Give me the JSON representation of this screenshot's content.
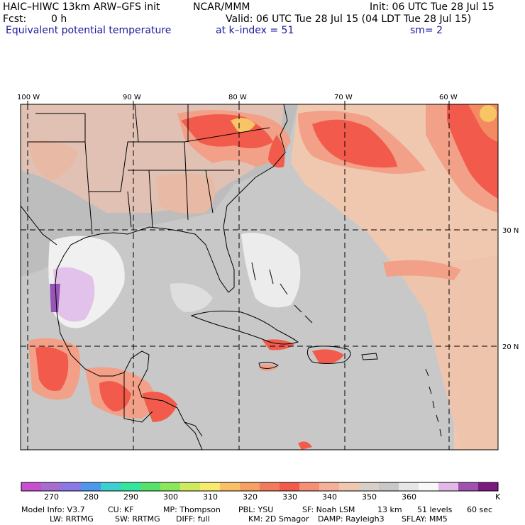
{
  "header": {
    "model_title": "HAIC–HIWC 13km ARW–GFS init",
    "org": "NCAR/MMM",
    "init": "Init: 06 UTC Tue 28 Jul 15",
    "fcst_label": "Fcst:",
    "fcst_value": "0 h",
    "valid": "Valid: 06 UTC Tue 28 Jul 15 (04 LDT Tue 28 Jul 15)",
    "field": "Equivalent potential temperature",
    "level": "at k–index =  51",
    "smooth": "sm= 2"
  },
  "map": {
    "lon_labels": [
      "100 W",
      "90 W",
      "80 W",
      "70 W",
      "60 W"
    ],
    "lat_labels": [
      "30 N",
      "20 N"
    ],
    "colors": {
      "background_gray": "#c8c8c8",
      "land_gray": "#b5b5b5",
      "light_salmon": "#f0c3ad",
      "salmon": "#f2a088",
      "red_orange": "#f25b4b",
      "orange": "#f38a62",
      "yellow_orange": "#f8c565",
      "light_gray": "#e0e0e0",
      "near_white": "#f2f2f2",
      "lavender": "#d8b0e0",
      "purple": "#9855b8",
      "coast_line": "#000000",
      "grid_line": "#000000"
    }
  },
  "colorbar": {
    "unit": "K",
    "tick_labels": [
      "270",
      "280",
      "290",
      "300",
      "310",
      "320",
      "330",
      "340",
      "350",
      "360"
    ],
    "colors": [
      "#c84fcf",
      "#a76ccf",
      "#8a78e8",
      "#4c98ee",
      "#3ad0d0",
      "#33e6a0",
      "#54e26a",
      "#8ae75a",
      "#d0ea60",
      "#f8ea6a",
      "#f9c065",
      "#f8a062",
      "#f37a5a",
      "#f25b4b",
      "#f58f76",
      "#f6b098",
      "#f0c8b0",
      "#d8d0c8",
      "#c8c8c8",
      "#e6e6e6",
      "#f8f8f8",
      "#e2b8e8",
      "#a050b0",
      "#7a1a80"
    ]
  },
  "model_info": {
    "line1": [
      "Model Info: V3.7",
      "CU: KF",
      "MP: Thompson",
      "PBL: YSU",
      "SF: Noah LSM",
      "13 km",
      "51 levels",
      "60 sec"
    ],
    "line2": [
      "LW: RRTMG",
      "SW: RRTMG",
      "DIFF: full",
      "KM: 2D Smagor",
      "DAMP: Rayleigh3",
      "SFLAY: MM5"
    ]
  }
}
